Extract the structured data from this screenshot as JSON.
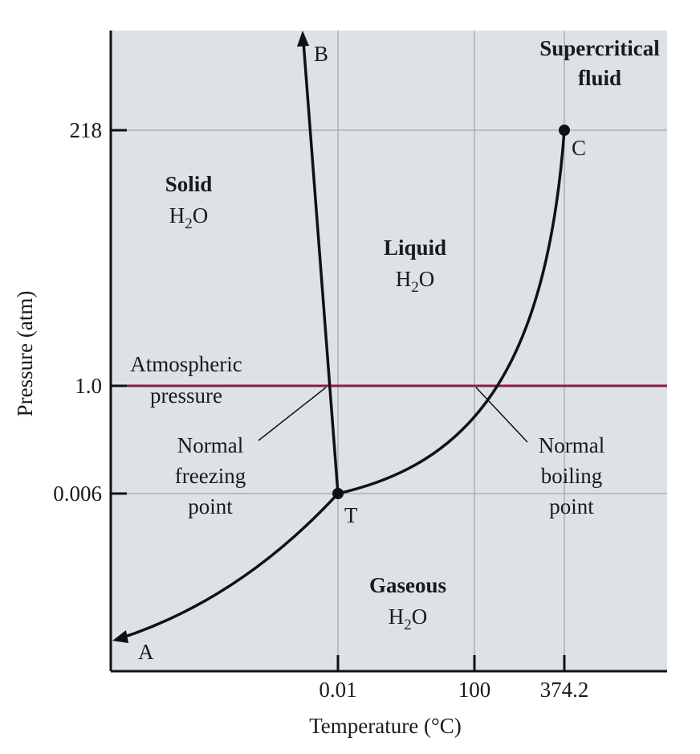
{
  "title": "",
  "axes": {
    "x_label": "Temperature (°C)",
    "y_label": "Pressure (atm)",
    "x_ticks": [
      "0.01",
      "100",
      "374.2"
    ],
    "y_ticks": [
      "218",
      "1.0",
      "0.006"
    ]
  },
  "regions": {
    "solid": {
      "name": "Solid",
      "formula_main": "H",
      "formula_sub": "2",
      "formula_end": "O"
    },
    "liquid": {
      "name": "Liquid",
      "formula_main": "H",
      "formula_sub": "2",
      "formula_end": "O"
    },
    "gas": {
      "name": "Gaseous",
      "formula_main": "H",
      "formula_sub": "2",
      "formula_end": "O"
    },
    "supercritical": {
      "line1": "Supercritical",
      "line2": "fluid"
    }
  },
  "points": {
    "A": "A",
    "B": "B",
    "C": "C",
    "T": "T"
  },
  "annotations": {
    "atmospheric": {
      "line1": "Atmospheric",
      "line2": "pressure"
    },
    "freezing": {
      "line1": "Normal",
      "line2": "freezing",
      "line3": "point"
    },
    "boiling": {
      "line1": "Normal",
      "line2": "boiling",
      "line3": "point"
    }
  },
  "colors": {
    "plot_background": "#dde2e6",
    "atmospheric_line": "#8a1c46",
    "curve": "#111111",
    "grid": "#a9b0b5"
  }
}
